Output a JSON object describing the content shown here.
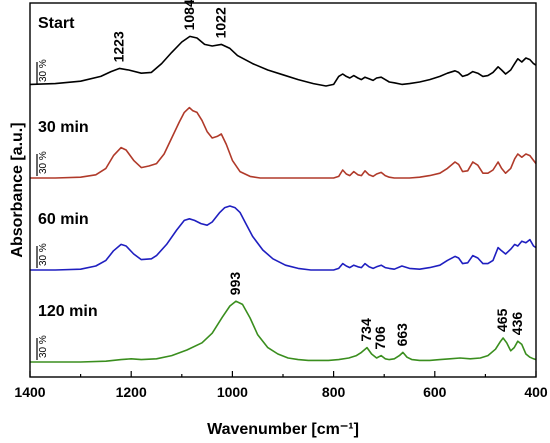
{
  "chart_data": {
    "type": "line",
    "xlabel": "Wavenumber [cm⁻¹]",
    "ylabel": "Absorbance [a.u.]",
    "xlim": [
      1400,
      400
    ],
    "x_inverted": true,
    "xticks": [
      1400,
      1200,
      1000,
      800,
      600,
      400
    ],
    "y_ticks_visible": false,
    "grid": false,
    "legend": "none",
    "scale_bar_label": "30 %",
    "series": [
      {
        "name": "Start",
        "color": "#000000",
        "offset": 3.0,
        "x": [
          1400,
          1350,
          1300,
          1260,
          1240,
          1223,
          1205,
          1180,
          1160,
          1140,
          1120,
          1100,
          1084,
          1070,
          1055,
          1040,
          1022,
          1005,
          990,
          960,
          930,
          900,
          870,
          840,
          815,
          800,
          790,
          782,
          775,
          768,
          760,
          752,
          745,
          738,
          730,
          722,
          715,
          706,
          698,
          690,
          680,
          665,
          650,
          630,
          610,
          590,
          575,
          560,
          553,
          545,
          535,
          525,
          515,
          505,
          495,
          485,
          475,
          468,
          460,
          450,
          442,
          436,
          428,
          420,
          412,
          405,
          400
        ],
        "y": [
          0.02,
          0.03,
          0.06,
          0.12,
          0.18,
          0.22,
          0.2,
          0.16,
          0.17,
          0.28,
          0.42,
          0.55,
          0.62,
          0.6,
          0.52,
          0.5,
          0.52,
          0.47,
          0.38,
          0.28,
          0.2,
          0.14,
          0.08,
          0.03,
          0.0,
          0.02,
          0.12,
          0.15,
          0.12,
          0.1,
          0.13,
          0.1,
          0.08,
          0.11,
          0.09,
          0.07,
          0.1,
          0.11,
          0.08,
          0.05,
          0.04,
          0.02,
          0.03,
          0.05,
          0.08,
          0.12,
          0.16,
          0.19,
          0.17,
          0.12,
          0.14,
          0.18,
          0.16,
          0.12,
          0.13,
          0.17,
          0.24,
          0.2,
          0.15,
          0.2,
          0.28,
          0.34,
          0.3,
          0.35,
          0.33,
          0.28,
          0.26
        ]
      },
      {
        "name": "30 min",
        "color": "#b03a2a",
        "offset": 2.0,
        "x": [
          1400,
          1350,
          1300,
          1270,
          1250,
          1235,
          1220,
          1210,
          1195,
          1180,
          1165,
          1150,
          1135,
          1120,
          1105,
          1095,
          1085,
          1078,
          1070,
          1060,
          1050,
          1040,
          1030,
          1022,
          1012,
          1000,
          985,
          965,
          945,
          920,
          895,
          870,
          845,
          820,
          800,
          790,
          782,
          775,
          768,
          760,
          752,
          745,
          738,
          730,
          722,
          715,
          706,
          698,
          690,
          680,
          665,
          650,
          630,
          610,
          590,
          575,
          560,
          553,
          545,
          535,
          525,
          515,
          505,
          495,
          485,
          475,
          468,
          460,
          450,
          442,
          436,
          428,
          420,
          412,
          405,
          400
        ],
        "y": [
          0.0,
          0.0,
          0.01,
          0.04,
          0.12,
          0.28,
          0.38,
          0.35,
          0.22,
          0.13,
          0.15,
          0.18,
          0.3,
          0.5,
          0.7,
          0.82,
          0.88,
          0.84,
          0.82,
          0.72,
          0.58,
          0.5,
          0.52,
          0.55,
          0.42,
          0.22,
          0.08,
          0.02,
          0.0,
          0.0,
          0.0,
          0.0,
          0.0,
          0.0,
          0.0,
          0.02,
          0.1,
          0.05,
          0.03,
          0.08,
          0.04,
          0.03,
          0.09,
          0.04,
          0.02,
          0.05,
          0.07,
          0.03,
          0.01,
          0.0,
          0.0,
          0.0,
          0.01,
          0.03,
          0.06,
          0.12,
          0.2,
          0.17,
          0.08,
          0.09,
          0.2,
          0.16,
          0.06,
          0.06,
          0.1,
          0.2,
          0.12,
          0.06,
          0.12,
          0.24,
          0.3,
          0.26,
          0.3,
          0.28,
          0.22,
          0.18
        ]
      },
      {
        "name": "60 min",
        "color": "#1f1fc0",
        "offset": 1.0,
        "x": [
          1400,
          1350,
          1300,
          1270,
          1250,
          1235,
          1220,
          1210,
          1195,
          1180,
          1160,
          1150,
          1130,
          1110,
          1095,
          1085,
          1075,
          1062,
          1050,
          1040,
          1025,
          1015,
          1005,
          995,
          985,
          975,
          960,
          940,
          920,
          895,
          870,
          845,
          820,
          800,
          790,
          782,
          775,
          768,
          760,
          752,
          745,
          738,
          730,
          722,
          715,
          706,
          698,
          690,
          680,
          665,
          650,
          630,
          610,
          590,
          575,
          560,
          553,
          545,
          535,
          525,
          515,
          505,
          495,
          485,
          475,
          468,
          460,
          450,
          442,
          436,
          428,
          420,
          412,
          405,
          400
        ],
        "y": [
          0.0,
          0.0,
          0.01,
          0.05,
          0.12,
          0.24,
          0.32,
          0.3,
          0.2,
          0.13,
          0.14,
          0.18,
          0.32,
          0.5,
          0.62,
          0.64,
          0.62,
          0.58,
          0.56,
          0.6,
          0.72,
          0.78,
          0.8,
          0.78,
          0.72,
          0.6,
          0.42,
          0.25,
          0.14,
          0.06,
          0.02,
          0.0,
          0.0,
          0.0,
          0.02,
          0.08,
          0.05,
          0.03,
          0.06,
          0.04,
          0.03,
          0.08,
          0.04,
          0.02,
          0.04,
          0.06,
          0.03,
          0.02,
          0.01,
          0.05,
          0.02,
          0.01,
          0.03,
          0.06,
          0.12,
          0.17,
          0.15,
          0.08,
          0.09,
          0.18,
          0.15,
          0.08,
          0.08,
          0.12,
          0.28,
          0.24,
          0.2,
          0.26,
          0.32,
          0.3,
          0.36,
          0.34,
          0.38,
          0.3,
          0.28
        ]
      },
      {
        "name": "120 min",
        "color": "#3a8e1e",
        "offset": 0.0,
        "x": [
          1400,
          1350,
          1300,
          1250,
          1220,
          1200,
          1180,
          1150,
          1120,
          1090,
          1060,
          1040,
          1020,
          1005,
          993,
          980,
          965,
          950,
          930,
          910,
          890,
          870,
          850,
          830,
          810,
          790,
          770,
          755,
          745,
          734,
          725,
          715,
          706,
          698,
          690,
          680,
          670,
          663,
          655,
          645,
          630,
          610,
          590,
          570,
          550,
          530,
          510,
          495,
          480,
          470,
          465,
          458,
          450,
          443,
          436,
          428,
          420,
          412,
          405,
          400
        ],
        "y": [
          0.0,
          0.0,
          0.0,
          0.01,
          0.03,
          0.04,
          0.03,
          0.04,
          0.08,
          0.15,
          0.24,
          0.36,
          0.56,
          0.7,
          0.76,
          0.72,
          0.55,
          0.34,
          0.18,
          0.1,
          0.05,
          0.03,
          0.02,
          0.02,
          0.02,
          0.03,
          0.05,
          0.08,
          0.12,
          0.18,
          0.1,
          0.05,
          0.08,
          0.04,
          0.03,
          0.04,
          0.08,
          0.12,
          0.06,
          0.03,
          0.02,
          0.02,
          0.03,
          0.04,
          0.05,
          0.04,
          0.05,
          0.08,
          0.16,
          0.26,
          0.3,
          0.24,
          0.14,
          0.18,
          0.26,
          0.22,
          0.1,
          0.06,
          0.04,
          0.03
        ]
      }
    ],
    "peak_labels": [
      {
        "text": "1223",
        "series": "Start",
        "x": 1223
      },
      {
        "text": "1084",
        "series": "Start",
        "x": 1084
      },
      {
        "text": "1022",
        "series": "Start",
        "x": 1022
      },
      {
        "text": "993",
        "series": "120 min",
        "x": 993
      },
      {
        "text": "734",
        "series": "120 min",
        "x": 734
      },
      {
        "text": "706",
        "series": "120 min",
        "x": 706
      },
      {
        "text": "663",
        "series": "120 min",
        "x": 663
      },
      {
        "text": "465",
        "series": "120 min",
        "x": 465
      },
      {
        "text": "436",
        "series": "120 min",
        "x": 436
      }
    ]
  }
}
